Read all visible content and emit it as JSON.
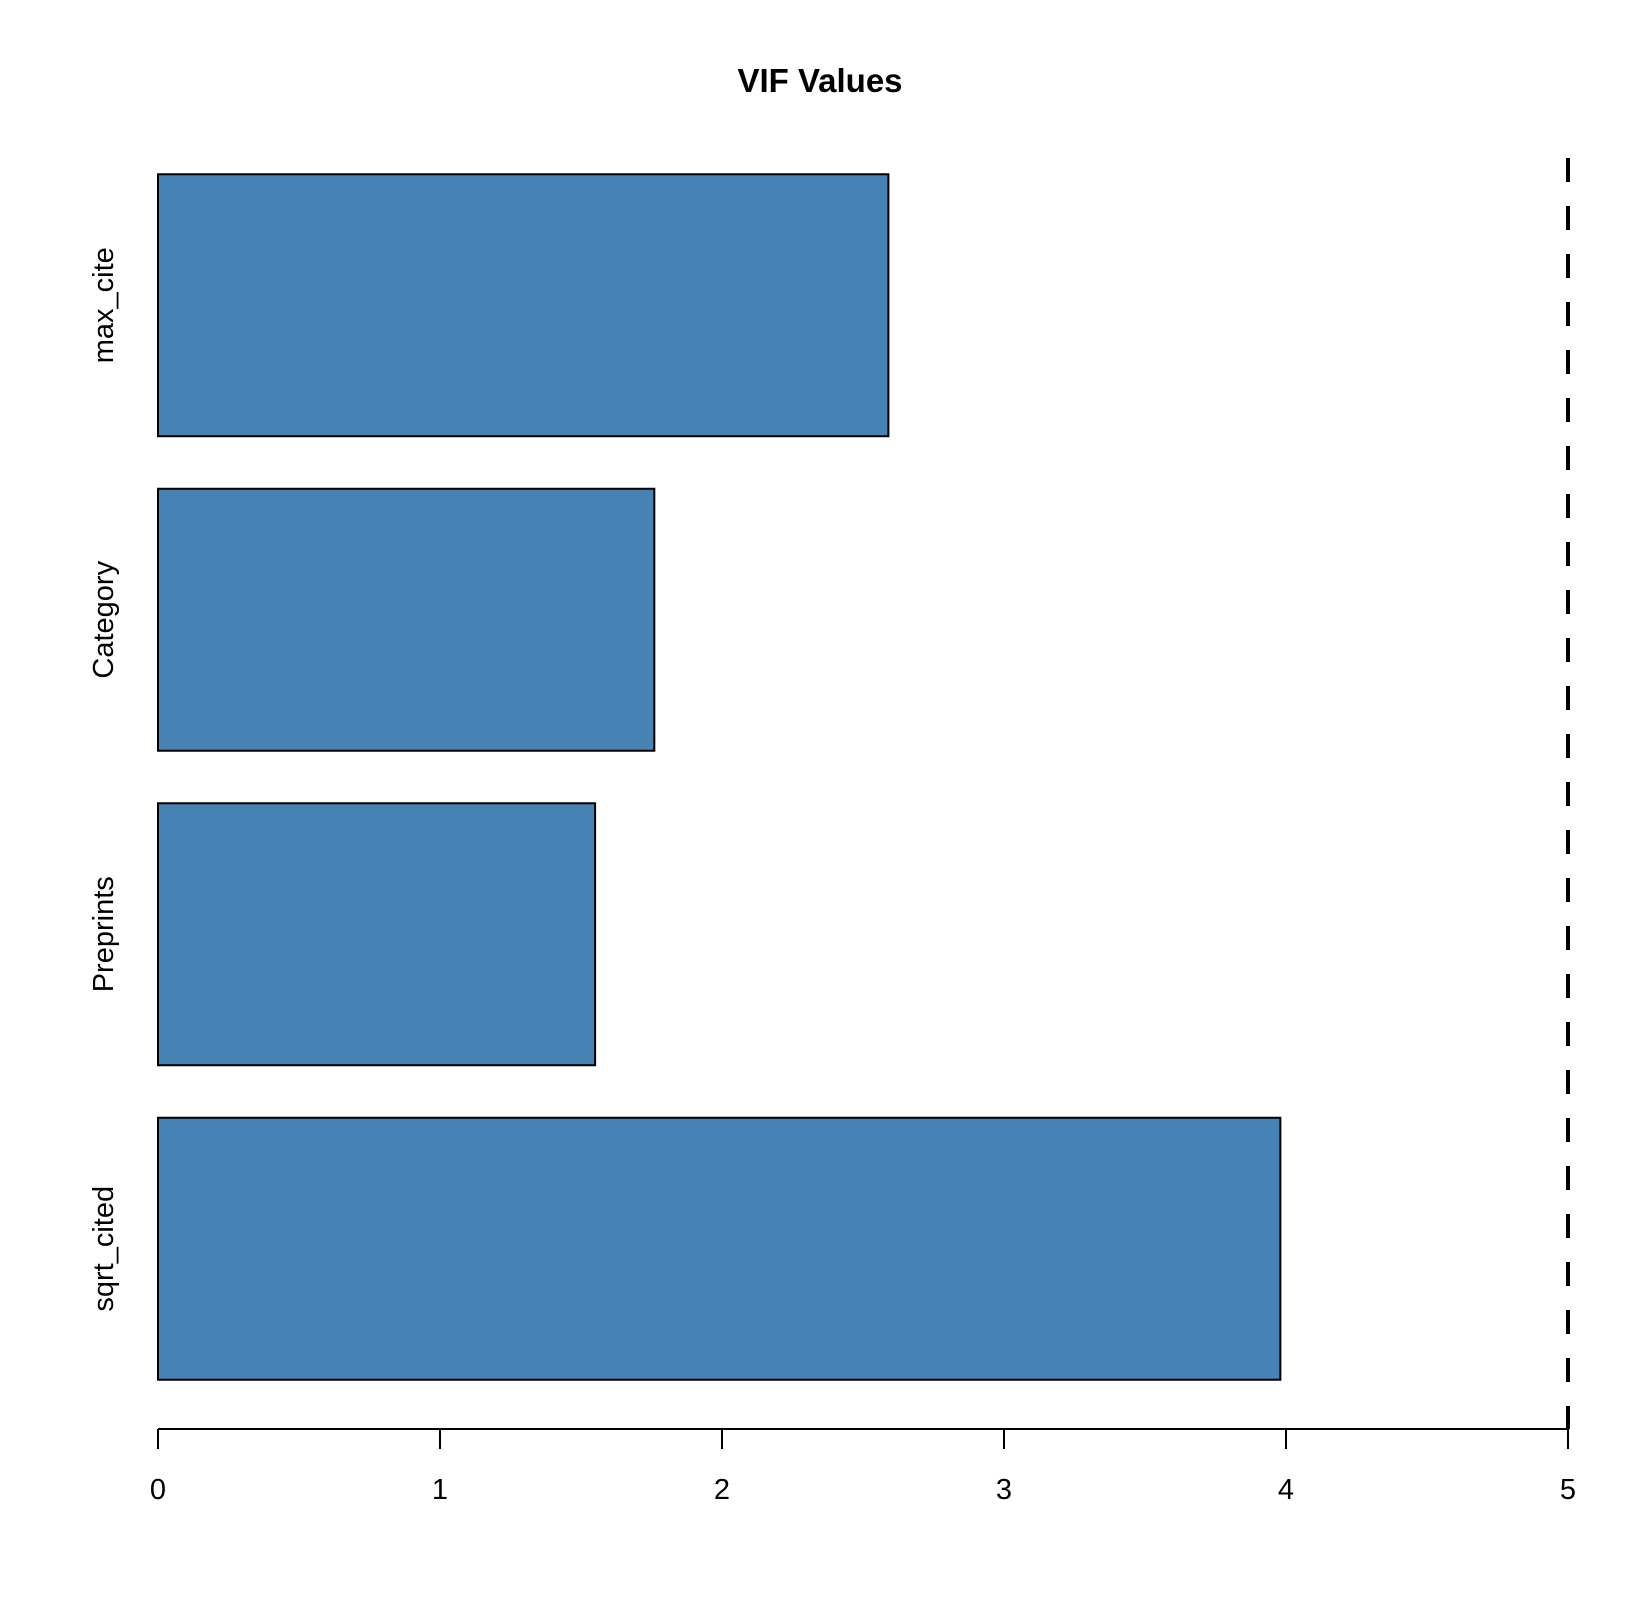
{
  "chart_data": {
    "type": "bar",
    "orientation": "horizontal",
    "title": "VIF Values",
    "xlabel": "",
    "ylabel": "",
    "categories": [
      "sqrt_cited",
      "Preprints",
      "Category",
      "max_cite"
    ],
    "values": [
      3.98,
      1.55,
      1.76,
      2.59
    ],
    "xlim": [
      0,
      5
    ],
    "xticks": [
      0,
      1,
      2,
      3,
      4,
      5
    ],
    "reference_line": {
      "value": 5,
      "style": "dashed"
    },
    "grid": false,
    "legend": "none",
    "colors": {
      "bar_fill": "#4682B4",
      "bar_stroke": "#000000",
      "reference_line": "#000000"
    }
  }
}
